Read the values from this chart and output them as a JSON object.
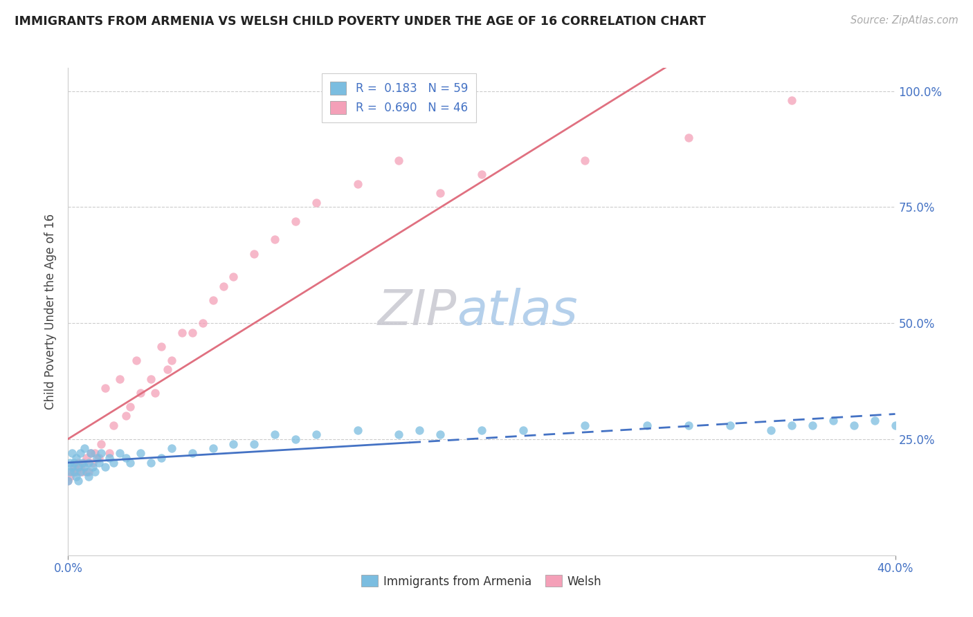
{
  "title": "IMMIGRANTS FROM ARMENIA VS WELSH CHILD POVERTY UNDER THE AGE OF 16 CORRELATION CHART",
  "source": "Source: ZipAtlas.com",
  "ylabel": "Child Poverty Under the Age of 16",
  "legend_label1": "Immigrants from Armenia",
  "legend_label2": "Welsh",
  "r1": 0.183,
  "n1": 59,
  "r2": 0.69,
  "n2": 46,
  "color_blue": "#7bbde0",
  "color_pink": "#f4a0b8",
  "color_blue_line": "#4472c4",
  "color_pink_line": "#e07080",
  "xlim": [
    0.0,
    0.4
  ],
  "ylim": [
    0.0,
    1.05
  ],
  "x_ticks": [
    0.0,
    0.4
  ],
  "x_tick_labels": [
    "0.0%",
    "40.0%"
  ],
  "y_ticks": [
    0.25,
    0.5,
    0.75,
    1.0
  ],
  "y_tick_labels": [
    "25.0%",
    "50.0%",
    "75.0%",
    "100.0%"
  ],
  "watermark_zip": "ZIP",
  "watermark_atlas": "atlas",
  "blue_x": [
    0.0,
    0.001,
    0.001,
    0.002,
    0.002,
    0.003,
    0.003,
    0.004,
    0.004,
    0.005,
    0.005,
    0.006,
    0.006,
    0.007,
    0.008,
    0.008,
    0.009,
    0.01,
    0.01,
    0.011,
    0.012,
    0.013,
    0.014,
    0.015,
    0.016,
    0.018,
    0.02,
    0.022,
    0.025,
    0.028,
    0.03,
    0.035,
    0.04,
    0.045,
    0.05,
    0.06,
    0.07,
    0.08,
    0.09,
    0.1,
    0.11,
    0.12,
    0.14,
    0.16,
    0.17,
    0.18,
    0.2,
    0.22,
    0.25,
    0.28,
    0.3,
    0.32,
    0.34,
    0.35,
    0.36,
    0.37,
    0.38,
    0.39,
    0.4
  ],
  "blue_y": [
    0.16,
    0.2,
    0.18,
    0.19,
    0.22,
    0.18,
    0.2,
    0.17,
    0.21,
    0.19,
    0.16,
    0.18,
    0.22,
    0.2,
    0.19,
    0.23,
    0.18,
    0.2,
    0.17,
    0.22,
    0.19,
    0.18,
    0.21,
    0.2,
    0.22,
    0.19,
    0.21,
    0.2,
    0.22,
    0.21,
    0.2,
    0.22,
    0.2,
    0.21,
    0.23,
    0.22,
    0.23,
    0.24,
    0.24,
    0.26,
    0.25,
    0.26,
    0.27,
    0.26,
    0.27,
    0.26,
    0.27,
    0.27,
    0.28,
    0.28,
    0.28,
    0.28,
    0.27,
    0.28,
    0.28,
    0.29,
    0.28,
    0.29,
    0.28
  ],
  "pink_x": [
    0.0,
    0.001,
    0.002,
    0.003,
    0.004,
    0.005,
    0.006,
    0.007,
    0.008,
    0.009,
    0.01,
    0.011,
    0.012,
    0.013,
    0.015,
    0.016,
    0.018,
    0.02,
    0.022,
    0.025,
    0.028,
    0.03,
    0.033,
    0.035,
    0.04,
    0.042,
    0.045,
    0.048,
    0.05,
    0.055,
    0.06,
    0.065,
    0.07,
    0.075,
    0.08,
    0.09,
    0.1,
    0.11,
    0.12,
    0.14,
    0.16,
    0.18,
    0.2,
    0.25,
    0.3,
    0.35
  ],
  "pink_y": [
    0.16,
    0.17,
    0.18,
    0.19,
    0.18,
    0.2,
    0.19,
    0.18,
    0.2,
    0.21,
    0.18,
    0.22,
    0.2,
    0.22,
    0.21,
    0.24,
    0.36,
    0.22,
    0.28,
    0.38,
    0.3,
    0.32,
    0.42,
    0.35,
    0.38,
    0.35,
    0.45,
    0.4,
    0.42,
    0.48,
    0.48,
    0.5,
    0.55,
    0.58,
    0.6,
    0.65,
    0.68,
    0.72,
    0.76,
    0.8,
    0.85,
    0.78,
    0.82,
    0.85,
    0.9,
    0.98
  ]
}
